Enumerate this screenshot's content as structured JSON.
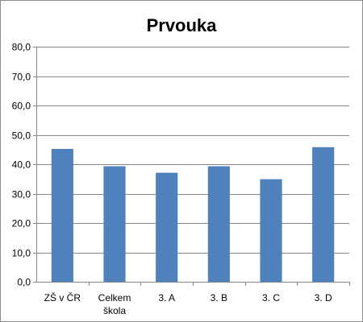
{
  "chart_data": {
    "type": "bar",
    "title": "Prvouka",
    "xlabel": "",
    "ylabel": "",
    "categories": [
      [
        "ZŠ v ČR"
      ],
      [
        "Celkem",
        "škola"
      ],
      [
        "3. A"
      ],
      [
        "3. B"
      ],
      [
        "3. C"
      ],
      [
        "3. D"
      ]
    ],
    "values": [
      45.2,
      39.3,
      37.1,
      39.3,
      34.9,
      45.8
    ],
    "ylim": [
      0,
      80
    ],
    "yticks": [
      "0,0",
      "10,0",
      "20,0",
      "30,0",
      "40,0",
      "50,0",
      "60,0",
      "70,0",
      "80,0"
    ],
    "grid": true,
    "legend": "none",
    "bar_color": "#4f81bd",
    "grid_color": "#868686"
  }
}
